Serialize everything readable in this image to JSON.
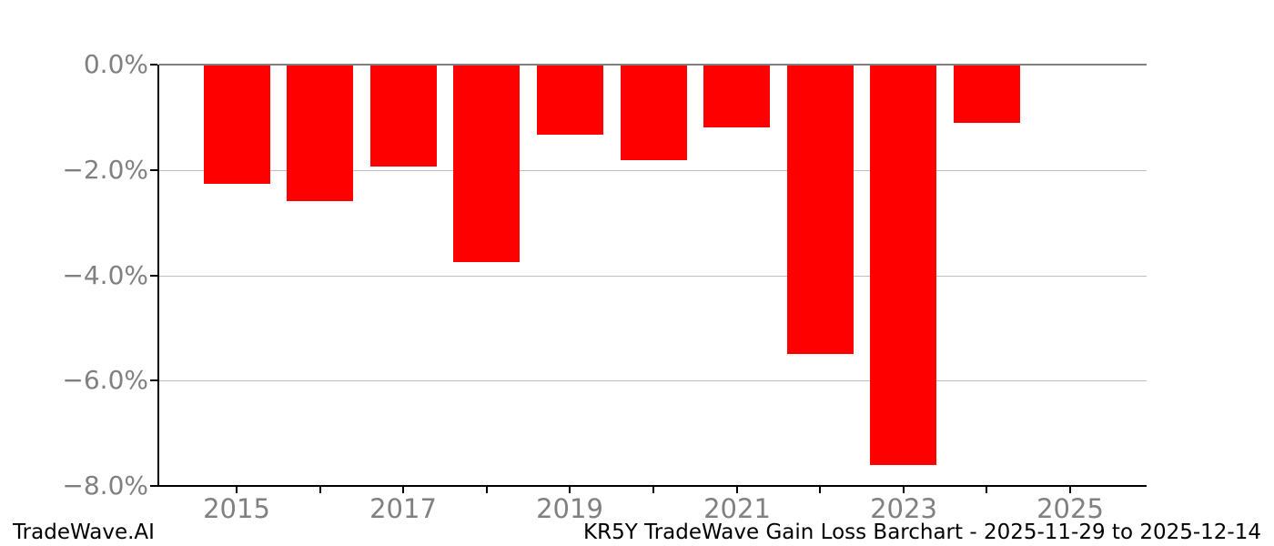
{
  "footer": {
    "left": "TradeWave.AI",
    "right": "KR5Y TradeWave Gain Loss Barchart - 2025-11-29 to 2025-12-14"
  },
  "chart_data": {
    "type": "bar",
    "title": "KR5Y TradeWave Gain Loss Barchart - 2025-11-29 to 2025-12-14",
    "xlabel": "",
    "ylabel": "",
    "unit": "%",
    "categories": [
      2015,
      2016,
      2017,
      2018,
      2019,
      2020,
      2021,
      2022,
      2023,
      2024
    ],
    "values": [
      -2.27,
      -2.6,
      -1.94,
      -3.75,
      -1.33,
      -1.81,
      -1.2,
      -5.5,
      -7.6,
      -1.1
    ],
    "ylim": [
      -8.0,
      0.0
    ],
    "xlim": [
      2014.1,
      2025.9
    ],
    "grid": "horizontal",
    "legend": "none",
    "yticks": [
      {
        "value": 0,
        "label": "0.0%"
      },
      {
        "value": -2,
        "label": "−2.0%"
      },
      {
        "value": -4,
        "label": "−4.0%"
      },
      {
        "value": -6,
        "label": "−6.0%"
      },
      {
        "value": -8,
        "label": "−8.0%"
      }
    ],
    "xticks": [
      {
        "value": 2015,
        "label": "2015"
      },
      {
        "value": 2016,
        "label": ""
      },
      {
        "value": 2017,
        "label": "2017"
      },
      {
        "value": 2018,
        "label": ""
      },
      {
        "value": 2019,
        "label": "2019"
      },
      {
        "value": 2020,
        "label": ""
      },
      {
        "value": 2021,
        "label": "2021"
      },
      {
        "value": 2022,
        "label": ""
      },
      {
        "value": 2023,
        "label": "2023"
      },
      {
        "value": 2024,
        "label": ""
      },
      {
        "value": 2025,
        "label": "2025"
      }
    ],
    "colors": {
      "bar": "#ff0000",
      "grid": "#bdbdbd",
      "zero_line": "#808080",
      "tick_label": "#808080",
      "spine": "#000000",
      "tick_mark": "#000000",
      "footer_text": "#000000",
      "background": "#ffffff"
    }
  }
}
